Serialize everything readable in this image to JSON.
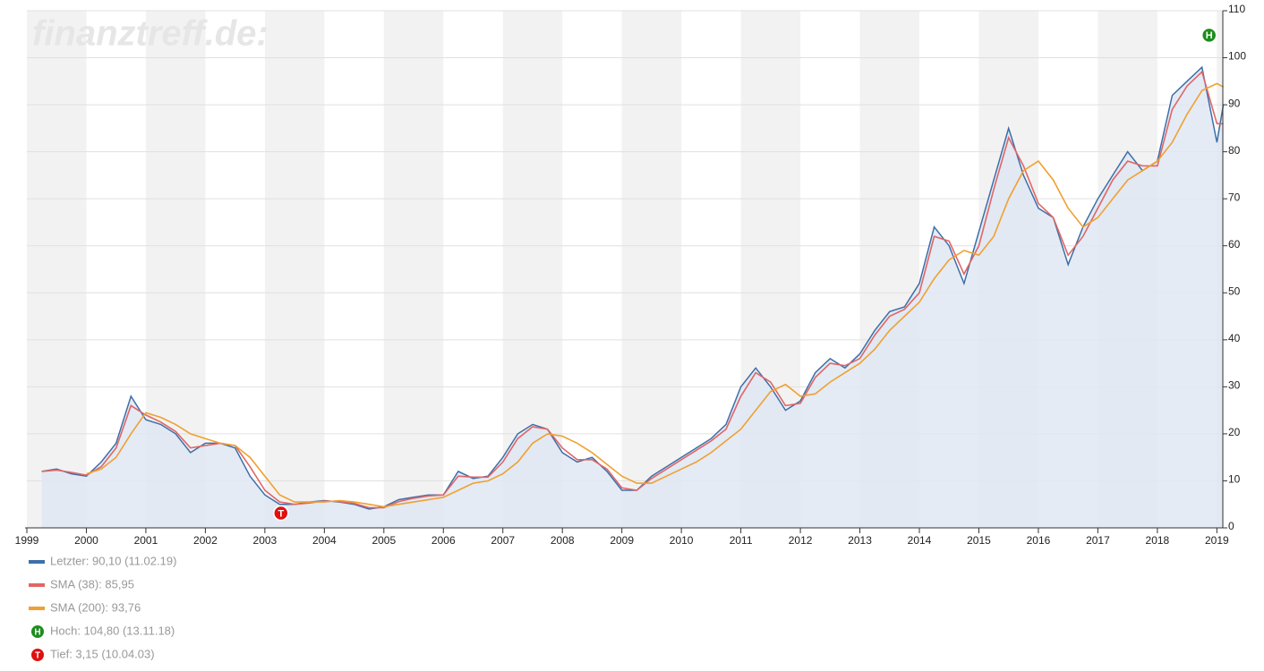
{
  "chart_data": {
    "type": "line",
    "watermark": "finanztreff.de:",
    "x": [
      1999.25,
      1999.5,
      1999.75,
      2000,
      2000.25,
      2000.5,
      2000.75,
      2001,
      2001.25,
      2001.5,
      2001.75,
      2002,
      2002.25,
      2002.5,
      2002.75,
      2003,
      2003.25,
      2003.5,
      2003.75,
      2004,
      2004.25,
      2004.5,
      2004.75,
      2005,
      2005.25,
      2005.5,
      2005.75,
      2006,
      2006.25,
      2006.5,
      2006.75,
      2007,
      2007.25,
      2007.5,
      2007.75,
      2008,
      2008.25,
      2008.5,
      2008.75,
      2009,
      2009.25,
      2009.5,
      2009.75,
      2010,
      2010.25,
      2010.5,
      2010.75,
      2011,
      2011.25,
      2011.5,
      2011.75,
      2012,
      2012.25,
      2012.5,
      2012.75,
      2013,
      2013.25,
      2013.5,
      2013.75,
      2014,
      2014.25,
      2014.5,
      2014.75,
      2015,
      2015.25,
      2015.5,
      2015.75,
      2016,
      2016.25,
      2016.5,
      2016.75,
      2017,
      2017.25,
      2017.5,
      2017.75,
      2018,
      2018.25,
      2018.5,
      2018.75,
      2019,
      2019.11
    ],
    "series": [
      {
        "name": "Letzter: 90,10 (11.02.19)",
        "color": "#3d6fa8",
        "fill": "#dfe8f3",
        "values": [
          12,
          12.5,
          11.5,
          11,
          14,
          18,
          28,
          23,
          22,
          20,
          16,
          18,
          18,
          17,
          11,
          7,
          5,
          5,
          5.5,
          5.8,
          5.5,
          5,
          4,
          4.5,
          6,
          6.5,
          7,
          7,
          12,
          10.5,
          11,
          15,
          20,
          22,
          21,
          16,
          14,
          15,
          12,
          8,
          8,
          11,
          13,
          15,
          17,
          19,
          22,
          30,
          34,
          30,
          25,
          27,
          33,
          36,
          34,
          37,
          42,
          46,
          47,
          52,
          64,
          60,
          52,
          63,
          74,
          85,
          75,
          68,
          66,
          56,
          64,
          70,
          75,
          80,
          76,
          78,
          92,
          95,
          98,
          82,
          90.1
        ]
      },
      {
        "name": "SMA (38): 85,95",
        "color": "#e06666",
        "values": [
          12,
          12.3,
          11.8,
          11.2,
          13,
          17,
          26,
          24,
          22.5,
          20.5,
          17,
          17.5,
          18,
          17.5,
          13,
          8,
          5.5,
          5,
          5.3,
          5.7,
          5.6,
          5.2,
          4.3,
          4.3,
          5.6,
          6.3,
          6.8,
          7,
          11,
          10.8,
          10.8,
          14,
          19,
          21.5,
          21,
          17,
          14.5,
          14.5,
          12.5,
          8.5,
          8,
          10.5,
          12.5,
          14.5,
          16.5,
          18.5,
          21,
          28,
          33,
          31,
          26,
          26.5,
          32,
          35,
          34.5,
          36,
          41,
          45,
          46.5,
          50,
          62,
          61,
          54,
          60,
          72,
          83,
          77,
          69,
          66,
          58,
          62,
          68,
          74,
          78,
          77,
          77,
          89,
          94,
          97,
          86,
          85.95
        ]
      },
      {
        "name": "SMA (200): 93,76",
        "color": "#f0a030",
        "values": [
          null,
          null,
          null,
          11.5,
          12.5,
          15,
          20,
          24.5,
          23.5,
          22,
          20,
          19,
          18,
          17.5,
          15,
          11,
          7,
          5.5,
          5.5,
          5.5,
          5.8,
          5.5,
          5,
          4.5,
          5,
          5.5,
          6,
          6.5,
          8,
          9.5,
          10,
          11.5,
          14,
          18,
          20,
          19.5,
          18,
          16,
          13.5,
          11,
          9.5,
          9.5,
          11,
          12.5,
          14,
          16,
          18.5,
          21,
          25,
          29,
          30.5,
          28,
          28.5,
          31,
          33,
          35,
          38,
          42,
          45,
          48,
          53,
          57,
          59,
          58,
          62,
          70,
          76,
          78,
          74,
          68,
          64,
          66,
          70,
          74,
          76,
          78,
          82,
          88,
          93,
          94.5,
          93.76
        ]
      }
    ],
    "markers": [
      {
        "label": "H",
        "x": 2018.87,
        "y": 104.8,
        "color": "#1e8c1e",
        "legend": "Hoch: 104,80 (13.11.18)"
      },
      {
        "label": "T",
        "x": 2003.27,
        "y": 3.15,
        "color": "#e01010",
        "legend": "Tief: 3,15 (10.04.03)"
      }
    ],
    "xlim": [
      1999,
      2019.1
    ],
    "xticks": [
      1999,
      2000,
      2001,
      2002,
      2003,
      2004,
      2005,
      2006,
      2007,
      2008,
      2009,
      2010,
      2011,
      2012,
      2013,
      2014,
      2015,
      2016,
      2017,
      2018,
      2019
    ],
    "ylim": [
      0,
      110
    ],
    "yticks": [
      0,
      10,
      20,
      30,
      40,
      50,
      60,
      70,
      80,
      90,
      100,
      110
    ],
    "grid": true
  }
}
